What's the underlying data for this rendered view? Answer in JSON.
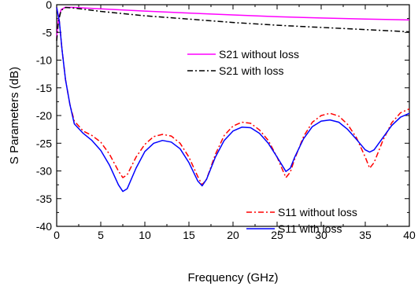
{
  "chart_data": {
    "type": "line",
    "xlabel": "Frequency (GHz)",
    "ylabel": "S Parameters (dB)",
    "xlim": [
      0,
      40
    ],
    "ylim": [
      -40,
      0
    ],
    "x_ticks": [
      0,
      5,
      10,
      15,
      20,
      25,
      30,
      35,
      40
    ],
    "y_ticks": [
      0,
      -5,
      -10,
      -15,
      -20,
      -25,
      -30,
      -35,
      -40
    ],
    "grid": false,
    "legends": [
      {
        "placement": "upper-middle",
        "entries": [
          "S21 without loss",
          "S21 with loss"
        ]
      },
      {
        "placement": "bottom-right",
        "entries": [
          "S11 without loss",
          "S11 with loss"
        ]
      }
    ],
    "series": [
      {
        "name": "S21 without loss",
        "color": "#ff00ff",
        "dash": "solid",
        "points": [
          [
            0,
            -6
          ],
          [
            0.2,
            -2.5
          ],
          [
            0.5,
            -0.9
          ],
          [
            1,
            -0.45
          ],
          [
            2,
            -0.5
          ],
          [
            5,
            -0.75
          ],
          [
            10,
            -1.15
          ],
          [
            15,
            -1.5
          ],
          [
            20,
            -1.85
          ],
          [
            25,
            -2.15
          ],
          [
            30,
            -2.4
          ],
          [
            35,
            -2.6
          ],
          [
            40,
            -2.75
          ]
        ]
      },
      {
        "name": "S21 with loss",
        "color": "#000000",
        "dash": "dash-dot",
        "points": [
          [
            0,
            -6.5
          ],
          [
            0.2,
            -3
          ],
          [
            0.5,
            -1
          ],
          [
            1,
            -0.5
          ],
          [
            2,
            -0.6
          ],
          [
            5,
            -1.2
          ],
          [
            10,
            -2.0
          ],
          [
            15,
            -2.6
          ],
          [
            20,
            -3.2
          ],
          [
            25,
            -3.7
          ],
          [
            30,
            -4.1
          ],
          [
            35,
            -4.5
          ],
          [
            40,
            -4.9
          ]
        ]
      },
      {
        "name": "S11 without loss",
        "color": "#ff0000",
        "dash": "dash-dot",
        "points": [
          [
            0,
            -0.5
          ],
          [
            0.3,
            -3
          ],
          [
            0.6,
            -8
          ],
          [
            1,
            -13.5
          ],
          [
            1.5,
            -18
          ],
          [
            2,
            -21
          ],
          [
            3,
            -22.8
          ],
          [
            4,
            -23.6
          ],
          [
            5,
            -24.8
          ],
          [
            6,
            -27
          ],
          [
            7,
            -30
          ],
          [
            7.5,
            -31.2
          ],
          [
            8,
            -30.7
          ],
          [
            9,
            -27.5
          ],
          [
            10,
            -25.2
          ],
          [
            11,
            -23.8
          ],
          [
            12,
            -23.4
          ],
          [
            13,
            -23.7
          ],
          [
            14,
            -25
          ],
          [
            15,
            -27.5
          ],
          [
            16,
            -31
          ],
          [
            16.5,
            -32.5
          ],
          [
            17,
            -31.5
          ],
          [
            18,
            -27
          ],
          [
            19,
            -23.6
          ],
          [
            20,
            -21.9
          ],
          [
            21,
            -21.2
          ],
          [
            22,
            -21.4
          ],
          [
            23,
            -22.6
          ],
          [
            24,
            -24.5
          ],
          [
            25,
            -27.5
          ],
          [
            26,
            -31.2
          ],
          [
            26.5,
            -30.2
          ],
          [
            27,
            -27.8
          ],
          [
            28,
            -23.8
          ],
          [
            29,
            -21.2
          ],
          [
            30,
            -20
          ],
          [
            31,
            -19.6
          ],
          [
            32,
            -20.1
          ],
          [
            33,
            -21.6
          ],
          [
            34,
            -24
          ],
          [
            35,
            -27.5
          ],
          [
            35.5,
            -29.5
          ],
          [
            36,
            -28.5
          ],
          [
            37,
            -24.5
          ],
          [
            38,
            -21.3
          ],
          [
            39,
            -19.5
          ],
          [
            40,
            -18.8
          ]
        ]
      },
      {
        "name": "S11 with loss",
        "color": "#0000ff",
        "dash": "solid",
        "points": [
          [
            0,
            -0.5
          ],
          [
            0.3,
            -3
          ],
          [
            0.6,
            -8
          ],
          [
            1,
            -13.5
          ],
          [
            1.5,
            -18
          ],
          [
            2,
            -21.5
          ],
          [
            3,
            -23.2
          ],
          [
            4,
            -24.5
          ],
          [
            5,
            -26.3
          ],
          [
            6,
            -29
          ],
          [
            7,
            -32.5
          ],
          [
            7.5,
            -33.7
          ],
          [
            8,
            -33.2
          ],
          [
            9,
            -29.5
          ],
          [
            10,
            -26.5
          ],
          [
            11,
            -25
          ],
          [
            12,
            -24.5
          ],
          [
            13,
            -24.8
          ],
          [
            14,
            -26
          ],
          [
            15,
            -28.5
          ],
          [
            16,
            -31.8
          ],
          [
            16.5,
            -32.7
          ],
          [
            17,
            -31.5
          ],
          [
            18,
            -27.5
          ],
          [
            19,
            -24.5
          ],
          [
            20,
            -22.8
          ],
          [
            21,
            -22.1
          ],
          [
            22,
            -22.2
          ],
          [
            23,
            -23.2
          ],
          [
            24,
            -25
          ],
          [
            25,
            -27.5
          ],
          [
            26,
            -30.1
          ],
          [
            26.5,
            -29.5
          ],
          [
            27,
            -27.5
          ],
          [
            28,
            -24.2
          ],
          [
            29,
            -22
          ],
          [
            30,
            -21
          ],
          [
            31,
            -20.8
          ],
          [
            32,
            -21.2
          ],
          [
            33,
            -22.5
          ],
          [
            34,
            -24.3
          ],
          [
            35,
            -26.2
          ],
          [
            35.5,
            -26.6
          ],
          [
            36,
            -26.2
          ],
          [
            37,
            -24
          ],
          [
            38,
            -21.8
          ],
          [
            39,
            -20.3
          ],
          [
            40,
            -19.6
          ]
        ]
      }
    ]
  }
}
